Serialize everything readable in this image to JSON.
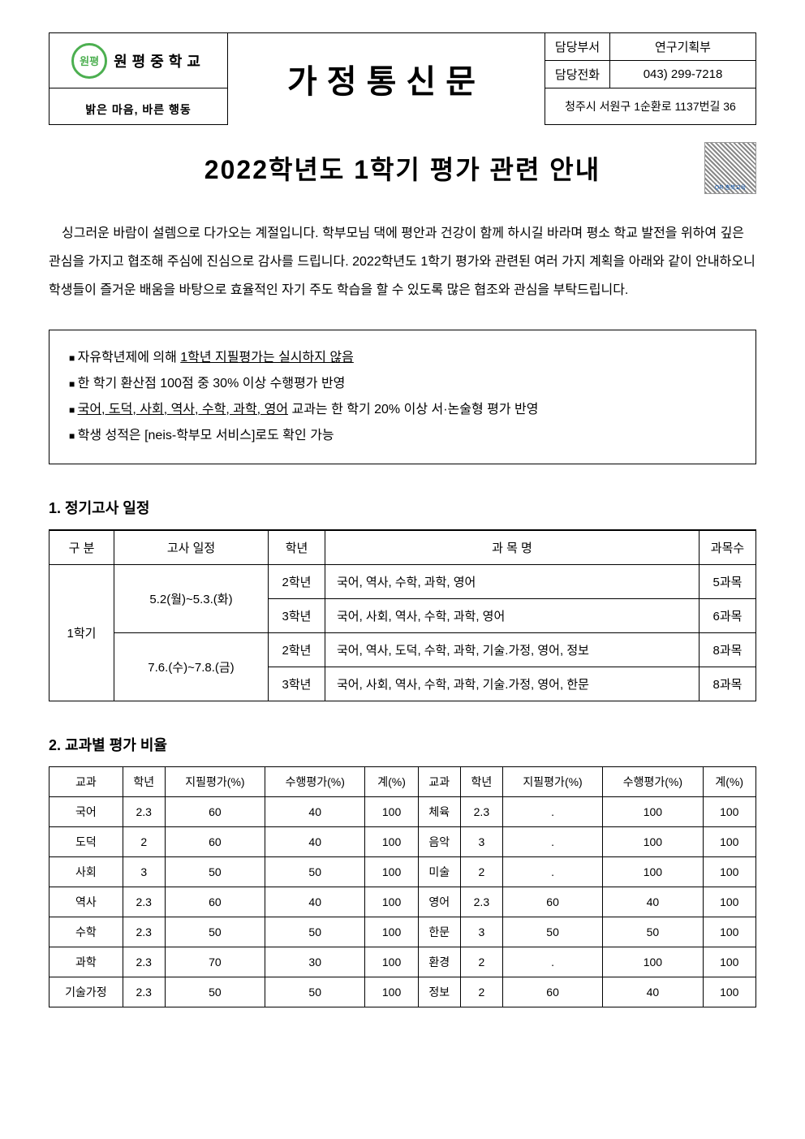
{
  "header": {
    "school_name": "원평중학교",
    "motto": "밝은 마음, 바른 행동",
    "doc_type": "가정통신문",
    "dept_label": "담당부서",
    "dept_value": "연구기획부",
    "phone_label": "담당전화",
    "phone_value": "043) 299-7218",
    "address": "청주시 서원구 1순환로 1137번길 36",
    "logo_text": "원평"
  },
  "main_title": "2022학년도 1학기 평가 관련 안내",
  "qr_caption": "QR 충북교육",
  "intro": "싱그러운 바람이 설렘으로 다가오는 계절입니다. 학부모님 댁에 평안과 건강이 함께 하시길 바라며 평소 학교 발전을 위하여 깊은 관심을 가지고 협조해 주심에 진심으로 감사를 드립니다. 2022학년도 1학기 평가와 관련된 여러 가지 계획을 아래와 같이 안내하오니 학생들이 즐거운 배움을 바탕으로 효율적인 자기 주도 학습을 할 수 있도록 많은 협조와 관심을 부탁드립니다.",
  "notices": {
    "n1_pre": "자유학년제에 의해 ",
    "n1_ul": "1학년 지필평가는 실시하지 않음",
    "n2": "한 학기 환산점 100점 중 30% 이상 수행평가 반영",
    "n3_ul": "국어, 도덕, 사회, 역사, 수학, 과학, 영어",
    "n3_post": " 교과는 한 학기 20% 이상 서·논술형 평가 반영",
    "n4": "학생 성적은 [neis-학부모 서비스]로도 확인 가능"
  },
  "section1": {
    "title": "1. 정기고사 일정",
    "headers": {
      "c1": "구 분",
      "c2": "고사 일정",
      "c3": "학년",
      "c4": "과 목 명",
      "c5": "과목수"
    },
    "semester": "1학기",
    "rows": [
      {
        "date": "5.2(월)~5.3.(화)",
        "grade": "2학년",
        "subjects": "국어, 역사, 수학, 과학, 영어",
        "count": "5과목"
      },
      {
        "date": "",
        "grade": "3학년",
        "subjects": "국어, 사회, 역사, 수학, 과학, 영어",
        "count": "6과목"
      },
      {
        "date": "7.6.(수)~7.8.(금)",
        "grade": "2학년",
        "subjects": "국어, 역사, 도덕, 수학, 과학, 기술.가정, 영어, 정보",
        "count": "8과목"
      },
      {
        "date": "",
        "grade": "3학년",
        "subjects": "국어, 사회, 역사, 수학, 과학, 기술.가정, 영어, 한문",
        "count": "8과목"
      }
    ]
  },
  "section2": {
    "title": "2. 교과별 평가 비율",
    "headers": {
      "subj": "교과",
      "grade": "학년",
      "paper": "지필평가(%)",
      "perf": "수행평가(%)",
      "total": "계(%)"
    },
    "left_rows": [
      {
        "s": "국어",
        "g": "2.3",
        "p": "60",
        "f": "40",
        "t": "100"
      },
      {
        "s": "도덕",
        "g": "2",
        "p": "60",
        "f": "40",
        "t": "100"
      },
      {
        "s": "사회",
        "g": "3",
        "p": "50",
        "f": "50",
        "t": "100"
      },
      {
        "s": "역사",
        "g": "2.3",
        "p": "60",
        "f": "40",
        "t": "100"
      },
      {
        "s": "수학",
        "g": "2.3",
        "p": "50",
        "f": "50",
        "t": "100"
      },
      {
        "s": "과학",
        "g": "2.3",
        "p": "70",
        "f": "30",
        "t": "100"
      },
      {
        "s": "기술가정",
        "g": "2.3",
        "p": "50",
        "f": "50",
        "t": "100"
      }
    ],
    "right_rows": [
      {
        "s": "체육",
        "g": "2.3",
        "p": ".",
        "f": "100",
        "t": "100"
      },
      {
        "s": "음악",
        "g": "3",
        "p": ".",
        "f": "100",
        "t": "100"
      },
      {
        "s": "미술",
        "g": "2",
        "p": ".",
        "f": "100",
        "t": "100"
      },
      {
        "s": "영어",
        "g": "2.3",
        "p": "60",
        "f": "40",
        "t": "100"
      },
      {
        "s": "한문",
        "g": "3",
        "p": "50",
        "f": "50",
        "t": "100"
      },
      {
        "s": "환경",
        "g": "2",
        "p": ".",
        "f": "100",
        "t": "100"
      },
      {
        "s": "정보",
        "g": "2",
        "p": "60",
        "f": "40",
        "t": "100"
      }
    ]
  }
}
